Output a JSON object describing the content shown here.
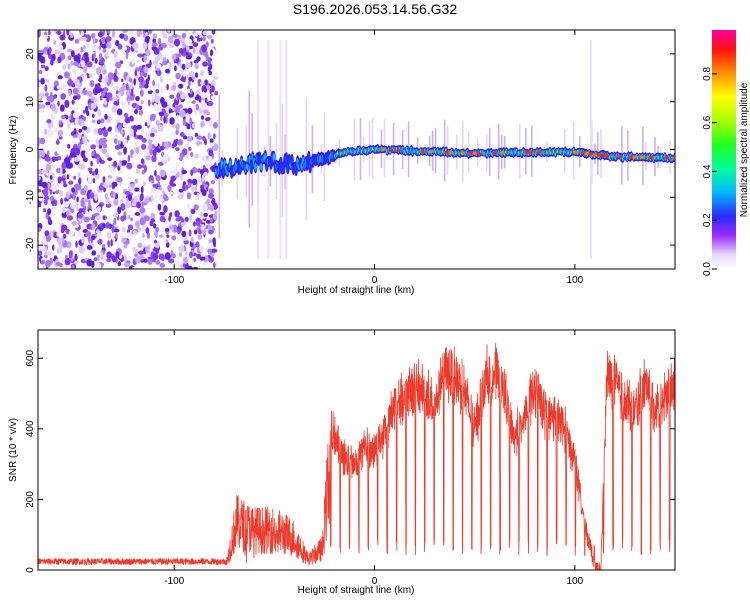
{
  "title": "S196.2026.053.14.56.G32",
  "colors": {
    "signal_line": "#ee3a2a",
    "axis": "#000000",
    "background": "#ffffff"
  },
  "chart_data": [
    {
      "type": "heatmap",
      "name": "spectrogram",
      "xlabel": "Height of straight line (km)",
      "ylabel": "Frequency (Hz)",
      "xlim": [
        -168,
        150
      ],
      "ylim": [
        -25,
        25
      ],
      "xticks": [
        -100,
        0,
        100
      ],
      "xtick_labels": [
        "-100",
        "0",
        "100"
      ],
      "yticks": [
        -20,
        -10,
        0,
        10,
        20
      ],
      "ytick_labels": [
        "-20",
        "-10",
        "0",
        "10",
        "20"
      ],
      "colorbar": {
        "label": "Normalized spectral amplitude",
        "range": [
          0,
          0.98
        ],
        "ticks": [
          0,
          0.2,
          0.4,
          0.6,
          0.8
        ],
        "tick_labels": [
          "0.0",
          "0.2",
          "0.4",
          "0.6",
          "0.8"
        ],
        "colormap": [
          "#ffffff",
          "#c8b4f0",
          "#7a2cf0",
          "#2222ff",
          "#00c8ff",
          "#00ff80",
          "#80ff00",
          "#ffff00",
          "#ff8000",
          "#ff0000",
          "#ff00ff"
        ]
      },
      "noise_region_x": [
        -168,
        -79
      ],
      "signal_track": {
        "start_x": -79,
        "frequency_profile": [
          [
            -79,
            -4.5
          ],
          [
            -70,
            -3.5
          ],
          [
            -60,
            -2.5
          ],
          [
            -40,
            -3
          ],
          [
            -25,
            -2
          ],
          [
            -15,
            -0.5
          ],
          [
            0,
            0
          ],
          [
            50,
            -0.8
          ],
          [
            100,
            -0.5
          ],
          [
            120,
            -1.5
          ],
          [
            150,
            -1.8
          ]
        ]
      }
    },
    {
      "type": "line",
      "name": "snr",
      "xlabel": "Height of straight line (km)",
      "ylabel": "SNR (10 * v/v)",
      "xlim": [
        -168,
        150
      ],
      "ylim": [
        0,
        680
      ],
      "xticks": [
        -100,
        0,
        100
      ],
      "xtick_labels": [
        "-100",
        "0",
        "100"
      ],
      "yticks": [
        0,
        200,
        400,
        600
      ],
      "ytick_labels": [
        "0",
        "200",
        "400",
        "600"
      ],
      "series": [
        {
          "name": "SNR",
          "points": [
            [
              -168,
              20
            ],
            [
              -150,
              22
            ],
            [
              -130,
              21
            ],
            [
              -110,
              22
            ],
            [
              -90,
              23
            ],
            [
              -74,
              25
            ],
            [
              -69,
              180
            ],
            [
              -60,
              150
            ],
            [
              -50,
              150
            ],
            [
              -40,
              120
            ],
            [
              -33,
              40
            ],
            [
              -26,
              80
            ],
            [
              -22,
              430
            ],
            [
              -15,
              350
            ],
            [
              -10,
              320
            ],
            [
              -5,
              380
            ],
            [
              0,
              370
            ],
            [
              5,
              420
            ],
            [
              10,
              500
            ],
            [
              15,
              520
            ],
            [
              20,
              560
            ],
            [
              25,
              540
            ],
            [
              30,
              500
            ],
            [
              35,
              600
            ],
            [
              40,
              580
            ],
            [
              45,
              540
            ],
            [
              50,
              420
            ],
            [
              55,
              580
            ],
            [
              60,
              600
            ],
            [
              65,
              540
            ],
            [
              70,
              400
            ],
            [
              75,
              480
            ],
            [
              80,
              540
            ],
            [
              85,
              470
            ],
            [
              90,
              470
            ],
            [
              95,
              430
            ],
            [
              100,
              340
            ],
            [
              105,
              150
            ],
            [
              110,
              30
            ],
            [
              113,
              20
            ],
            [
              116,
              580
            ],
            [
              120,
              560
            ],
            [
              125,
              500
            ],
            [
              130,
              480
            ],
            [
              135,
              560
            ],
            [
              140,
              490
            ],
            [
              145,
              520
            ],
            [
              150,
              560
            ]
          ]
        }
      ]
    }
  ]
}
